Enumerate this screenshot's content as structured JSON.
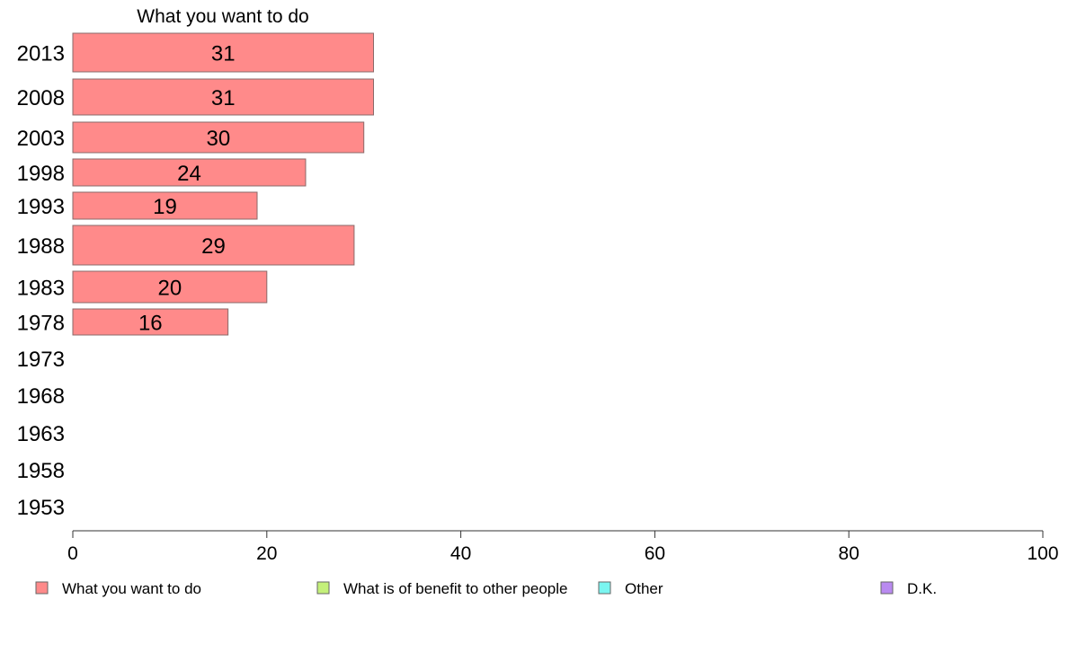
{
  "chart_data": {
    "type": "bar",
    "orientation": "horizontal",
    "title": "What you want to do",
    "categories": [
      "2013",
      "2008",
      "2003",
      "1998",
      "1993",
      "1988",
      "1983",
      "1978",
      "1973",
      "1968",
      "1963",
      "1958",
      "1953"
    ],
    "series": [
      {
        "name": "What you want to do",
        "color": "#ff8a8a",
        "values": [
          31,
          31,
          30,
          24,
          19,
          29,
          20,
          16,
          null,
          null,
          null,
          null,
          null
        ]
      }
    ],
    "xlim": [
      0,
      100
    ],
    "xticks": [
      "0",
      "20",
      "40",
      "60",
      "80",
      "100"
    ],
    "xlabel": "",
    "ylabel": "",
    "grid": false,
    "legend": {
      "placement": "bottom",
      "entries": [
        {
          "label": "What you want to do",
          "color": "#ff8a8a"
        },
        {
          "label": "What is of benefit to other people",
          "color": "#c4f07a"
        },
        {
          "label": "Other",
          "color": "#7af5f0"
        },
        {
          "label": "D.K.",
          "color": "#b98af0"
        }
      ]
    }
  }
}
